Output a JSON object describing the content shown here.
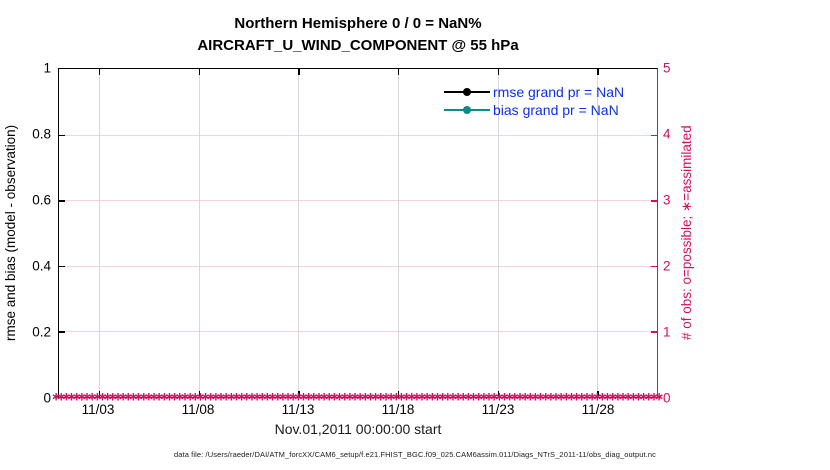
{
  "title": {
    "line1": "Northern Hemisphere 0 / 0 = NaN%",
    "line2": "AIRCRAFT_U_WIND_COMPONENT @ 55 hPa"
  },
  "left_axis": {
    "label": "rmse and bias (model - observation)",
    "ticks": [
      "0",
      "0.2",
      "0.4",
      "0.6",
      "0.8",
      "1"
    ]
  },
  "right_axis": {
    "label": "# of obs: o=possible; ∗=assimilated",
    "ticks": [
      "0",
      "1",
      "2",
      "3",
      "4",
      "5"
    ],
    "color": "#d40f5e"
  },
  "x_axis": {
    "label": "Nov.01,2011 00:00:00 start",
    "ticks": [
      "11/03",
      "11/08",
      "11/13",
      "11/18",
      "11/23",
      "11/28"
    ]
  },
  "legend": [
    {
      "label": "rmse grand pr = NaN",
      "color": "#000000"
    },
    {
      "label": "bias grand pr = NaN",
      "color": "#0e8b82"
    }
  ],
  "footer": "data file: /Users/raeder/DAI/ATM_forcXX/CAM6_setup/f.e21.FHIST_BGC.f09_025.CAM6assim.011/Diags_NTrS_2011-11/obs_diag_output.nc",
  "chart_data": {
    "type": "line",
    "title": "Northern Hemisphere 0 / 0 = NaN%",
    "subtitle": "AIRCRAFT_U_WIND_COMPONENT @ 55 hPa",
    "x_start": "2011-11-01 00:00:00",
    "x_end": "2011-12-01 00:00:00",
    "x_tick_labels": [
      "11/03",
      "11/08",
      "11/13",
      "11/18",
      "11/23",
      "11/28"
    ],
    "x_tick_interval_days": 5,
    "xlabel": "Nov.01,2011 00:00:00 start",
    "left_axis": {
      "label": "rmse and bias (model - observation)",
      "range": [
        0,
        1
      ],
      "tick_step": 0.2
    },
    "right_axis": {
      "label": "# of obs: o=possible; ∗=assimilated",
      "range": [
        0,
        5
      ],
      "tick_step": 1
    },
    "grid": true,
    "legend_position": "top-right-inside",
    "series": [
      {
        "name": "rmse grand pr = NaN",
        "axis": "left",
        "color": "#000000",
        "marker": "filled-circle",
        "values": [],
        "note": "all values NaN - no line drawn"
      },
      {
        "name": "bias grand pr = NaN",
        "axis": "left",
        "color": "#0e8b82",
        "marker": "filled-circle",
        "values": [],
        "note": "all values NaN - no line drawn"
      },
      {
        "name": "# of obs possible / assimilated",
        "axis": "right",
        "color": "#d40f5e",
        "marker": "∗",
        "constant_value": 0,
        "marker_count": 118
      }
    ]
  }
}
